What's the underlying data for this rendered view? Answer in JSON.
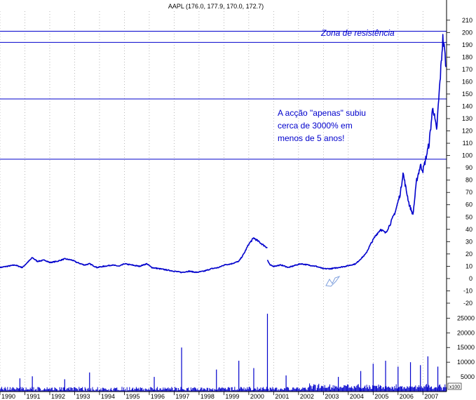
{
  "chart_data": [
    {
      "type": "line",
      "title": "AAPL (176.0, 177.9, 170.0, 172.7)",
      "ylim": [
        -20,
        215
      ],
      "yticks": [
        -20,
        -10,
        0,
        10,
        20,
        30,
        40,
        50,
        60,
        70,
        80,
        90,
        100,
        110,
        120,
        130,
        140,
        150,
        160,
        170,
        180,
        190,
        200,
        210
      ],
      "xlim": [
        1990,
        2007.95
      ],
      "xticks": [
        "1990",
        "1991",
        "1992",
        "1993",
        "1994",
        "1995",
        "1996",
        "1997",
        "1998",
        "1999",
        "2000",
        "2001",
        "2002",
        "2003",
        "2004",
        "2005",
        "2006",
        "2007"
      ],
      "grid": "vertical dotted",
      "line_color": "#0000cc",
      "series": [
        {
          "x": [
            1990.0,
            1990.3,
            1990.6,
            1990.9,
            1991.1,
            1991.3,
            1991.5,
            1991.8,
            1992.0,
            1992.3,
            1992.6,
            1992.9,
            1993.1,
            1993.4,
            1993.6,
            1993.9,
            1994.2,
            1994.5,
            1994.8,
            1995.0,
            1995.3,
            1995.6,
            1995.9,
            1996.1,
            1996.4,
            1996.7,
            1997.0,
            1997.3,
            1997.6,
            1997.9,
            1998.2,
            1998.5,
            1998.8,
            1999.0,
            1999.3,
            1999.6,
            1999.8,
            2000.0,
            2000.2,
            2000.4,
            2000.6,
            2000.75
          ],
          "values": [
            9,
            10,
            11,
            9,
            13,
            17,
            14,
            15,
            13,
            14,
            16,
            15,
            13,
            11,
            12,
            9,
            10,
            11,
            10,
            12,
            11,
            10,
            12,
            9,
            8,
            7,
            6,
            5,
            6,
            5,
            6,
            8,
            9,
            11,
            12,
            14,
            20,
            28,
            33,
            30,
            27,
            25
          ]
        },
        {
          "x": [
            2000.75,
            2000.85,
            2001.0,
            2001.3,
            2001.6,
            2001.9,
            2002.1,
            2002.4,
            2002.7,
            2003.0,
            2003.3,
            2003.6,
            2003.9,
            2004.1,
            2004.3,
            2004.5,
            2004.7,
            2004.9,
            2005.1,
            2005.3,
            2005.5,
            2005.7,
            2005.9,
            2006.1,
            2006.2,
            2006.3,
            2006.45,
            2006.6,
            2006.75,
            2006.9,
            2007.0,
            2007.1,
            2007.25,
            2007.4,
            2007.55,
            2007.65,
            2007.72,
            2007.8,
            2007.87,
            2007.93
          ],
          "values": [
            15,
            11,
            10,
            11,
            9,
            11,
            12,
            11,
            10,
            8,
            8,
            9,
            10,
            11,
            12,
            16,
            20,
            28,
            35,
            40,
            37,
            45,
            55,
            70,
            86,
            75,
            60,
            52,
            80,
            92,
            88,
            96,
            110,
            140,
            120,
            150,
            170,
            195,
            185,
            172
          ]
        }
      ],
      "hlines": [
        201,
        192,
        146,
        97
      ],
      "annotations": {
        "resistance": "Zona de resistência",
        "line1": "A acção  \"apenas\" subiu",
        "line2": "cerca de 3000%  em",
        "line3": "menos de 5 anos!"
      }
    },
    {
      "type": "bar",
      "ylim": [
        0,
        27000
      ],
      "yticks": [
        5000,
        10000,
        15000,
        20000,
        25000
      ],
      "scale_label": "x100",
      "volume": [
        {
          "x": 1990.8,
          "value": 4500
        },
        {
          "x": 1991.3,
          "value": 5200
        },
        {
          "x": 1992.6,
          "value": 4200
        },
        {
          "x": 1993.6,
          "value": 6500
        },
        {
          "x": 1996.2,
          "value": 5000
        },
        {
          "x": 1997.3,
          "value": 15000
        },
        {
          "x": 1998.7,
          "value": 7500
        },
        {
          "x": 1999.6,
          "value": 10500
        },
        {
          "x": 2000.2,
          "value": 8000
        },
        {
          "x": 2000.75,
          "value": 26500
        },
        {
          "x": 2001.5,
          "value": 5500
        },
        {
          "x": 2003.6,
          "value": 5000
        },
        {
          "x": 2004.5,
          "value": 7000
        },
        {
          "x": 2005.0,
          "value": 9500
        },
        {
          "x": 2005.5,
          "value": 10500
        },
        {
          "x": 2006.0,
          "value": 8500
        },
        {
          "x": 2006.5,
          "value": 10000
        },
        {
          "x": 2006.9,
          "value": 9000
        },
        {
          "x": 2007.2,
          "value": 12000
        },
        {
          "x": 2007.6,
          "value": 8500
        }
      ]
    }
  ]
}
